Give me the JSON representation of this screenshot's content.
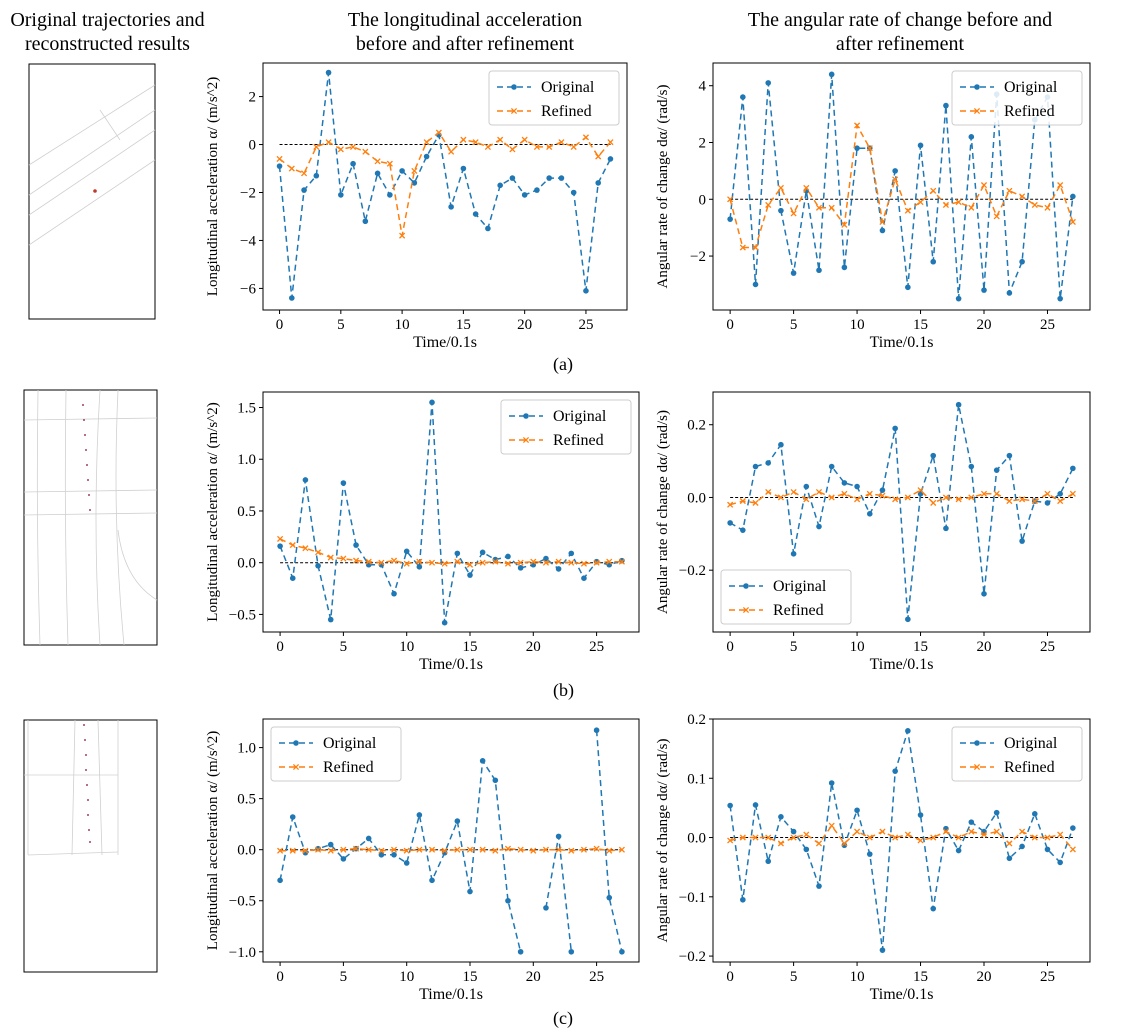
{
  "headers": {
    "left": [
      "Original trajectories and",
      "reconstructed results"
    ],
    "middle": [
      "The longitudinal acceleration",
      "before and after refinement"
    ],
    "right": [
      "The angular rate of change before and",
      "after refinement"
    ]
  },
  "row_labels": [
    "(a)",
    "(b)",
    "(c)"
  ],
  "colors": {
    "original": "#1f77b4",
    "refined": "#ff7f0e",
    "zero_line": "#000000",
    "map_lines": "#d0d0d0"
  },
  "chart_data": [
    {
      "id": "a-acc",
      "type": "line",
      "xlabel": "Time/0.1s",
      "ylabel": "Longitudinal acceleration α/ (m/s^2)",
      "xlim": [
        -1.35,
        28.35
      ],
      "ylim": [
        -6.9,
        3.4
      ],
      "xticks": [
        0,
        5,
        10,
        15,
        20,
        25
      ],
      "yticks": [
        -6,
        -4,
        -2,
        0,
        2
      ],
      "legend": "top-right",
      "zero_line": true,
      "series": [
        {
          "name": "Original",
          "marker": "dot",
          "values": [
            -0.9,
            -6.4,
            -1.9,
            -1.3,
            3.0,
            -2.1,
            -0.8,
            -3.2,
            -1.2,
            -2.1,
            -1.1,
            -1.6,
            -0.5,
            0.4,
            -2.6,
            -1.0,
            -2.9,
            -3.5,
            -1.7,
            -1.4,
            -2.1,
            -1.9,
            -1.4,
            -1.4,
            -2.0,
            -6.1,
            -1.6,
            -0.6
          ]
        },
        {
          "name": "Refined",
          "marker": "x",
          "values": [
            -0.6,
            -1.0,
            -1.2,
            -0.1,
            0.1,
            -0.2,
            -0.1,
            -0.3,
            -0.7,
            -0.8,
            -3.8,
            -1.1,
            0.1,
            0.5,
            -0.3,
            0.2,
            0.1,
            -0.1,
            0.2,
            -0.2,
            0.2,
            -0.1,
            -0.1,
            0.1,
            -0.1,
            0.3,
            -0.5,
            0.1
          ]
        }
      ]
    },
    {
      "id": "a-ang",
      "type": "line",
      "xlabel": "Time/0.1s",
      "ylabel": "Angular rate of change dα/ (rad/s)",
      "xlim": [
        -1.35,
        28.35
      ],
      "ylim": [
        -3.9,
        4.8
      ],
      "xticks": [
        0,
        5,
        10,
        15,
        20,
        25
      ],
      "yticks": [
        -2,
        0,
        2,
        4
      ],
      "legend": "top-right",
      "zero_line": true,
      "series": [
        {
          "name": "Original",
          "marker": "dot",
          "values": [
            -0.7,
            3.6,
            -3.0,
            4.1,
            -0.4,
            -2.6,
            0.3,
            -2.5,
            4.4,
            -2.4,
            1.8,
            1.8,
            -1.1,
            1.0,
            -3.1,
            1.9,
            -2.2,
            3.3,
            -3.5,
            2.2,
            -3.2,
            3.7,
            -3.3,
            -2.2,
            2.8,
            3.6,
            -3.5,
            0.1
          ]
        },
        {
          "name": "Refined",
          "marker": "x",
          "values": [
            0.0,
            -1.7,
            -1.7,
            -0.2,
            0.4,
            -0.5,
            0.4,
            -0.3,
            -0.3,
            -0.9,
            2.6,
            1.8,
            -0.8,
            0.7,
            -0.4,
            -0.1,
            0.3,
            -0.2,
            -0.1,
            -0.3,
            0.5,
            -0.6,
            0.3,
            0.1,
            -0.2,
            -0.3,
            0.5,
            -0.8
          ]
        }
      ]
    },
    {
      "id": "b-acc",
      "type": "line",
      "xlabel": "Time/0.1s",
      "ylabel": "Longitudinal acceleration α/ (m/s^2)",
      "xlim": [
        -1.35,
        28.35
      ],
      "ylim": [
        -0.67,
        1.65
      ],
      "xticks": [
        0,
        5,
        10,
        15,
        20,
        25
      ],
      "yticks": [
        -0.5,
        0.0,
        0.5,
        1.0,
        1.5
      ],
      "legend": "top-right",
      "zero_line": true,
      "series": [
        {
          "name": "Original",
          "marker": "dot",
          "values": [
            0.16,
            -0.15,
            0.8,
            -0.03,
            -0.55,
            0.77,
            0.17,
            -0.02,
            -0.02,
            -0.3,
            0.11,
            -0.04,
            1.55,
            -0.58,
            0.09,
            -0.12,
            0.1,
            0.03,
            0.06,
            -0.05,
            -0.02,
            0.04,
            -0.06,
            0.09,
            -0.15,
            0.01,
            -0.02,
            0.02
          ]
        },
        {
          "name": "Refined",
          "marker": "x",
          "values": [
            0.23,
            0.17,
            0.14,
            0.1,
            0.05,
            0.04,
            0.02,
            0.01,
            0.0,
            0.02,
            -0.01,
            0.01,
            0.0,
            -0.01,
            0.01,
            -0.02,
            0.0,
            0.01,
            -0.01,
            0.0,
            0.01,
            0.0,
            0.01,
            0.0,
            -0.01,
            0.0,
            0.01,
            0.01
          ]
        }
      ]
    },
    {
      "id": "b-ang",
      "type": "line",
      "xlabel": "Time/0.1s",
      "ylabel": "Angular rate of change dα/ (rad/s)",
      "xlim": [
        -1.35,
        28.35
      ],
      "ylim": [
        -0.37,
        0.29
      ],
      "xticks": [
        0,
        5,
        10,
        15,
        20,
        25
      ],
      "yticks": [
        -0.2,
        0.0,
        0.2
      ],
      "legend": "bottom-left",
      "zero_line": true,
      "series": [
        {
          "name": "Original",
          "marker": "dot",
          "values": [
            -0.07,
            -0.09,
            0.085,
            0.095,
            0.145,
            -0.155,
            0.03,
            -0.08,
            0.085,
            0.04,
            0.03,
            -0.045,
            0.02,
            0.19,
            -0.335,
            0.01,
            0.115,
            -0.085,
            0.255,
            0.085,
            -0.265,
            0.075,
            0.115,
            -0.12,
            -0.01,
            -0.015,
            0.01,
            0.08
          ]
        },
        {
          "name": "Refined",
          "marker": "x",
          "values": [
            -0.02,
            -0.01,
            -0.015,
            0.015,
            0.0,
            0.015,
            -0.005,
            0.015,
            0.0,
            0.01,
            -0.005,
            0.01,
            0.005,
            -0.005,
            0.0,
            0.02,
            -0.015,
            0.0,
            -0.005,
            0.0,
            0.01,
            0.01,
            -0.01,
            -0.005,
            -0.01,
            0.01,
            -0.01,
            0.01
          ]
        }
      ]
    },
    {
      "id": "c-acc",
      "type": "line",
      "xlabel": "Time/0.1s",
      "ylabel": "Longitudinal acceleration α/ (m/s^2)",
      "xlim": [
        -1.35,
        28.35
      ],
      "ylim": [
        -1.1,
        1.28
      ],
      "xticks": [
        0,
        5,
        10,
        15,
        20,
        25
      ],
      "yticks": [
        -1.0,
        -0.5,
        0.0,
        0.5,
        1.0
      ],
      "legend": "top-left",
      "zero_line": true,
      "series": [
        {
          "name": "Original",
          "marker": "dot",
          "values": [
            -0.3,
            0.32,
            -0.03,
            0.01,
            0.05,
            -0.09,
            0.01,
            0.11,
            -0.05,
            -0.05,
            -0.13,
            0.34,
            -0.3,
            -0.03,
            0.28,
            -0.41,
            0.87,
            0.68,
            -0.5,
            -1.0,
            null,
            -0.57,
            0.13,
            -1.0,
            null,
            1.17,
            -0.47,
            -1.0
          ]
        },
        {
          "name": "Refined",
          "marker": "x",
          "values": [
            -0.01,
            -0.01,
            -0.01,
            0.0,
            -0.01,
            0.0,
            0.01,
            0.0,
            -0.01,
            0.0,
            -0.01,
            0.0,
            0.0,
            -0.01,
            0.0,
            0.0,
            0.0,
            -0.01,
            0.01,
            0.0,
            -0.01,
            0.0,
            0.0,
            -0.01,
            0.0,
            0.01,
            -0.01,
            0.0
          ]
        }
      ]
    },
    {
      "id": "c-ang",
      "type": "line",
      "xlabel": "Time/0.1s",
      "ylabel": "Angular rate of change dα/ (rad/s)",
      "xlim": [
        -1.35,
        28.35
      ],
      "ylim": [
        -0.21,
        0.2
      ],
      "xticks": [
        0,
        5,
        10,
        15,
        20,
        25
      ],
      "yticks": [
        -0.2,
        -0.1,
        0.0,
        0.1,
        0.2
      ],
      "legend": "top-right",
      "zero_line": true,
      "series": [
        {
          "name": "Original",
          "marker": "dot",
          "values": [
            0.054,
            -0.105,
            0.055,
            -0.04,
            0.035,
            0.01,
            -0.02,
            -0.082,
            0.092,
            -0.013,
            0.046,
            -0.028,
            -0.19,
            0.112,
            0.18,
            0.038,
            -0.12,
            0.015,
            -0.022,
            0.026,
            0.01,
            0.042,
            -0.035,
            -0.015,
            0.04,
            -0.02,
            -0.042,
            0.016
          ]
        },
        {
          "name": "Refined",
          "marker": "x",
          "values": [
            -0.005,
            0.0,
            0.0,
            0.0,
            -0.01,
            0.0,
            0.005,
            -0.01,
            0.02,
            -0.01,
            0.01,
            0.0,
            0.01,
            0.0,
            0.005,
            -0.005,
            0.0,
            0.01,
            0.0,
            0.01,
            0.005,
            0.01,
            -0.01,
            0.01,
            0.0,
            0.0,
            0.005,
            -0.02
          ]
        }
      ]
    }
  ]
}
